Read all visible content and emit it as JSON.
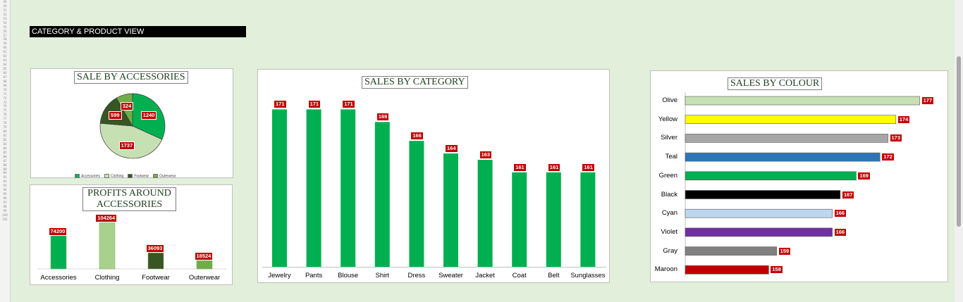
{
  "sheet": {
    "row_numbers": [
      "49",
      "50",
      "51",
      "52",
      "53",
      "54",
      "55",
      "56",
      "57",
      "58",
      "59",
      "60",
      "61",
      "62",
      "63",
      "64",
      "65",
      "66",
      "67",
      "68",
      "69",
      "70",
      "71",
      "72",
      "73",
      "74",
      "75",
      "76",
      "77",
      "78",
      "79",
      "80",
      "81",
      "82",
      "83",
      "84",
      "85",
      "86",
      "87",
      "88",
      "89",
      "90",
      "91",
      "92",
      "93",
      "94",
      "95",
      "96",
      "97",
      "98",
      "99",
      "100",
      "101"
    ]
  },
  "view_title": "CATEGORY & PRODUCT VIEW",
  "colors": {
    "background": "#e2efda",
    "green": "#00b050",
    "dark_green": "#375623",
    "light_green": "#c6e0b4",
    "mid_green": "#70ad47",
    "label_red": "#c00000"
  },
  "chart_data": [
    {
      "type": "pie",
      "title": "SALE BY ACCESSORIES",
      "categories": [
        "Accessories",
        "Clothing",
        "Footwear",
        "Outerwear"
      ],
      "values": [
        1240,
        1737,
        599,
        324
      ],
      "colors": [
        "#00b050",
        "#c6e0b4",
        "#375623",
        "#70ad47"
      ],
      "legend": "bottom"
    },
    {
      "type": "bar",
      "title": "PROFITS AROUND ACCESSORIES",
      "categories": [
        "Accessories",
        "Clothing",
        "Footwear",
        "Outerwear"
      ],
      "values": [
        74200,
        104264,
        36093,
        18524
      ],
      "colors": [
        "#00b050",
        "#a9d18e",
        "#375623",
        "#70ad47"
      ],
      "ylim": [
        0,
        104264
      ]
    },
    {
      "type": "bar",
      "title": "SALES BY CATEGORY",
      "categories": [
        "Jewelry",
        "Pants",
        "Blouse",
        "Shirt",
        "Dress",
        "Sweater",
        "Jacket",
        "Coat",
        "Belt",
        "Sunglasses"
      ],
      "values": [
        171,
        171,
        171,
        169,
        166,
        164,
        163,
        161,
        161,
        161
      ],
      "color": "#00b050",
      "ylim": [
        146,
        172.5
      ]
    },
    {
      "type": "bar",
      "orientation": "horizontal",
      "title": "SALES BY COLOUR",
      "categories": [
        "Olive",
        "Yellow",
        "Silver",
        "Teal",
        "Green",
        "Black",
        "Cyan",
        "Violet",
        "Gray",
        "Maroon"
      ],
      "values": [
        177,
        174,
        173,
        172,
        169,
        167,
        166,
        166,
        159,
        158
      ],
      "colors": [
        "#c6e0b4",
        "#ffff00",
        "#a6a6a6",
        "#2e75b6",
        "#00b050",
        "#000000",
        "#bdd7ee",
        "#7030a0",
        "#808080",
        "#c00000"
      ],
      "xlim": [
        147.5,
        177.3
      ]
    }
  ]
}
